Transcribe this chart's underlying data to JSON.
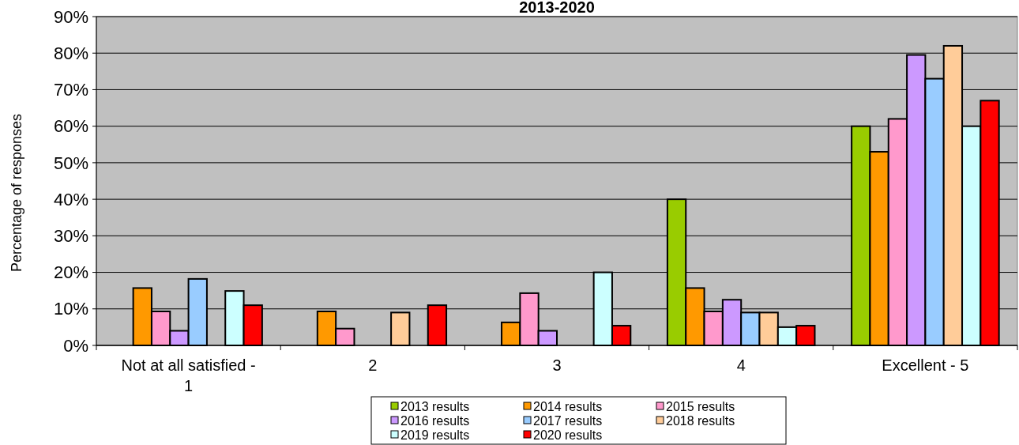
{
  "chart_data": {
    "type": "bar",
    "title": "2013-2020",
    "ylabel": "Percentage of responses",
    "categories": [
      "Not at all satisfied - 1",
      "2",
      "3",
      "4",
      "Excellent - 5"
    ],
    "series": [
      {
        "name": "2013 results",
        "color": "#99cc00",
        "values": [
          0,
          0,
          0,
          40,
          60
        ]
      },
      {
        "name": "2014 results",
        "color": "#ff9900",
        "values": [
          15.7,
          9.3,
          6.3,
          15.7,
          53
        ]
      },
      {
        "name": "2015 results",
        "color": "#ff99cc",
        "values": [
          9.3,
          4.6,
          14.3,
          9.3,
          62
        ]
      },
      {
        "name": "2016 results",
        "color": "#cc99ff",
        "values": [
          4,
          0,
          4,
          12.5,
          79.5
        ]
      },
      {
        "name": "2017 results",
        "color": "#99ccff",
        "values": [
          18.2,
          0,
          0,
          9,
          73
        ]
      },
      {
        "name": "2018 results",
        "color": "#ffcc99",
        "values": [
          0,
          9,
          0,
          9,
          82
        ]
      },
      {
        "name": "2019 results",
        "color": "#ccffff",
        "values": [
          14.9,
          0,
          20,
          5,
          60
        ]
      },
      {
        "name": "2020 results",
        "color": "#ff0000",
        "values": [
          11,
          11,
          5.4,
          5.4,
          67
        ]
      }
    ],
    "ylim": [
      0,
      90
    ],
    "yticks": [
      {
        "value": 0,
        "label": "0%"
      },
      {
        "value": 10,
        "label": "10%"
      },
      {
        "value": 20,
        "label": "20%"
      },
      {
        "value": 30,
        "label": "30%"
      },
      {
        "value": 40,
        "label": "40%"
      },
      {
        "value": 50,
        "label": "50%"
      },
      {
        "value": 60,
        "label": "60%"
      },
      {
        "value": 70,
        "label": "70%"
      },
      {
        "value": 80,
        "label": "80%"
      },
      {
        "value": 90,
        "label": "90%"
      }
    ],
    "grid": "y",
    "legend": "bottom"
  }
}
